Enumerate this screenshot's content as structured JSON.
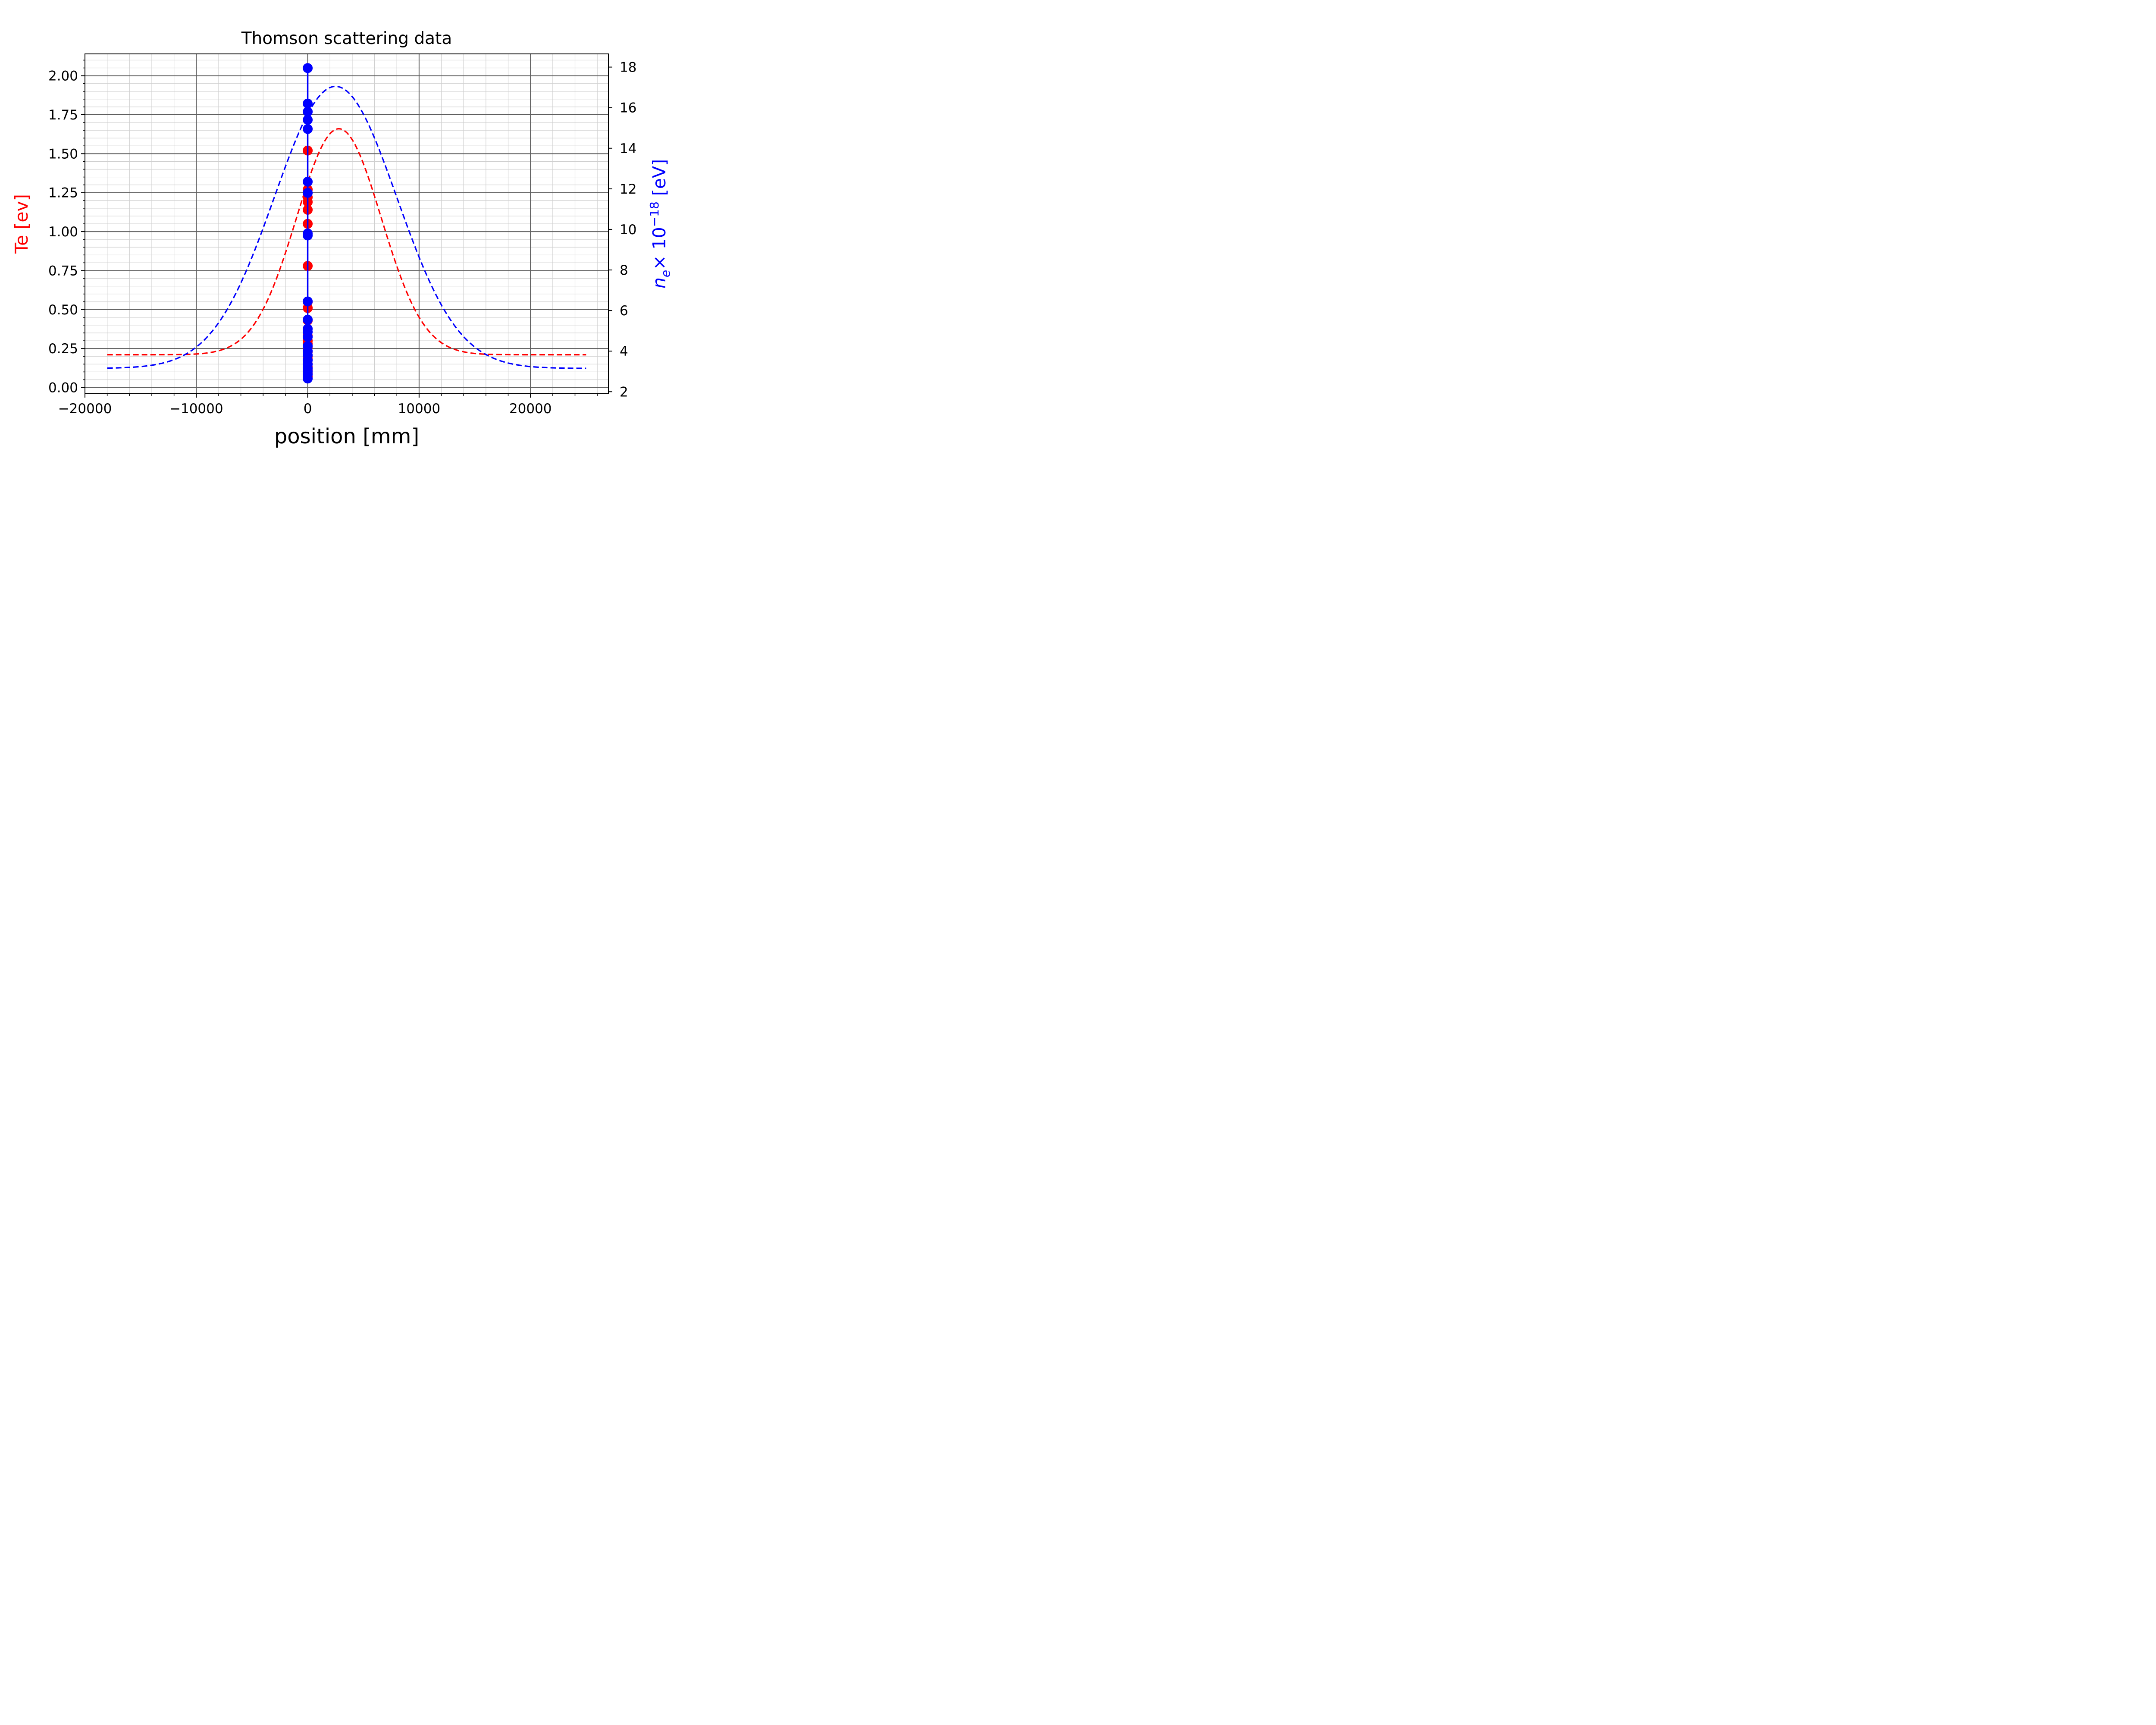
{
  "chart_data": {
    "type": "line",
    "title": "Thomson scattering data",
    "xlabel": "position [mm]",
    "ylabel_left": "Te [ev]",
    "ylabel_right_parts": {
      "n": "n",
      "sub": "e",
      "times": "× 10",
      "exp": "−18",
      "unit": " [eV]"
    },
    "xlim": [
      -20000,
      27000
    ],
    "ylim_left": [
      -0.04,
      2.14
    ],
    "ylim_right": [
      1.9,
      18.65
    ],
    "x_ticks": [
      {
        "value": -20000,
        "label": "−20000"
      },
      {
        "value": -10000,
        "label": "−10000"
      },
      {
        "value": 0,
        "label": "0"
      },
      {
        "value": 10000,
        "label": "10000"
      },
      {
        "value": 20000,
        "label": "20000"
      }
    ],
    "y_left_ticks": [
      {
        "value": 0.0,
        "label": "0.00"
      },
      {
        "value": 0.25,
        "label": "0.25"
      },
      {
        "value": 0.5,
        "label": "0.50"
      },
      {
        "value": 0.75,
        "label": "0.75"
      },
      {
        "value": 1.0,
        "label": "1.00"
      },
      {
        "value": 1.25,
        "label": "1.25"
      },
      {
        "value": 1.5,
        "label": "1.50"
      },
      {
        "value": 1.75,
        "label": "1.75"
      },
      {
        "value": 2.0,
        "label": "2.00"
      }
    ],
    "y_right_ticks": [
      {
        "value": 2,
        "label": "2"
      },
      {
        "value": 4,
        "label": "4"
      },
      {
        "value": 6,
        "label": "6"
      },
      {
        "value": 8,
        "label": "8"
      },
      {
        "value": 10,
        "label": "10"
      },
      {
        "value": 12,
        "label": "12"
      },
      {
        "value": 14,
        "label": "14"
      },
      {
        "value": 16,
        "label": "16"
      },
      {
        "value": 18,
        "label": "18"
      }
    ],
    "grid": true,
    "colors": {
      "te": "#ff0000",
      "ne": "#0000ff",
      "grid_major": "#606060",
      "grid_minor": "#d0d0d0"
    },
    "series": [
      {
        "axis": "left",
        "style": "markers",
        "color": "#ff0000",
        "x": [
          0,
          0,
          0,
          0,
          0,
          0,
          0,
          0,
          0,
          0,
          0,
          0,
          0,
          0,
          0,
          0,
          0,
          0,
          0,
          0,
          0,
          0
        ],
        "y": [
          1.52,
          1.27,
          1.22,
          1.19,
          1.14,
          1.05,
          0.78,
          0.55,
          0.51,
          0.43,
          0.33,
          0.3,
          0.28,
          0.26,
          0.23,
          0.2,
          0.18,
          0.15,
          0.13,
          0.11,
          0.09,
          0.07
        ]
      },
      {
        "axis": "left",
        "style": "dashed",
        "color": "#ff0000",
        "gaussian": {
          "baseline": 0.21,
          "amplitude": 1.45,
          "center": 2800,
          "sigma": 3800,
          "x_start": -18000,
          "x_end": 25000
        }
      },
      {
        "axis": "right",
        "style": "markers+line",
        "color": "#0000ff",
        "x": [
          0,
          0,
          0,
          0,
          0,
          0,
          0,
          0,
          0,
          0,
          0,
          0,
          0,
          0,
          0,
          0,
          0,
          0,
          0,
          0,
          0,
          0,
          0
        ],
        "y": [
          17.95,
          16.2,
          15.8,
          15.4,
          14.95,
          12.35,
          11.8,
          9.8,
          9.7,
          6.45,
          5.55,
          5.1,
          4.95,
          4.7,
          4.25,
          4.0,
          3.8,
          3.55,
          3.35,
          3.15,
          3.0,
          2.85,
          2.65
        ]
      },
      {
        "axis": "right",
        "style": "dashed",
        "color": "#0000ff",
        "gaussian": {
          "baseline": 3.15,
          "amplitude": 13.9,
          "center": 2500,
          "sigma": 5500,
          "x_start": -18000,
          "x_end": 25000
        }
      }
    ]
  }
}
